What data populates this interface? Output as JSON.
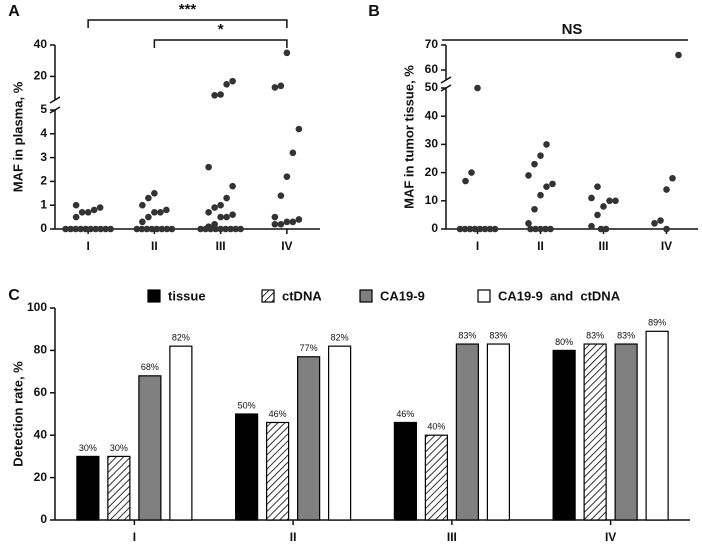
{
  "chart_data": [
    {
      "type": "strip",
      "panel": "A",
      "ylabel": "MAF in plasma, %",
      "categories": [
        "I",
        "II",
        "III",
        "IV"
      ],
      "values": [
        [
          0,
          0,
          0,
          0,
          0,
          0,
          0,
          0,
          0,
          0,
          0.5,
          0.7,
          0.7,
          0.8,
          0.9,
          1.0
        ],
        [
          0,
          0,
          0,
          0,
          0,
          0,
          0,
          0,
          0.3,
          0.5,
          0.7,
          0.7,
          0.8,
          1.0,
          1.3,
          1.5
        ],
        [
          0,
          0,
          0,
          0,
          0,
          0,
          0,
          0,
          0,
          0.1,
          0.2,
          0.5,
          0.5,
          0.6,
          0.7,
          0.9,
          1.0,
          1.3,
          1.8,
          2.6,
          8,
          8.5,
          15,
          17
        ],
        [
          0.2,
          0.2,
          0.3,
          0.3,
          0.4,
          0.5,
          1.4,
          2.2,
          3.2,
          4.2,
          13,
          14,
          35
        ]
      ],
      "color": "#333333",
      "ylim": [
        0,
        5
      ],
      "yticks": [
        0,
        1,
        2,
        3,
        4,
        5
      ],
      "ylim_upper": [
        5,
        40
      ],
      "yticks_upper": [
        20,
        40
      ],
      "brackets": [
        {
          "label": "***",
          "from": "I",
          "to": "IV"
        },
        {
          "label": "*",
          "from": "II",
          "to": "IV"
        }
      ]
    },
    {
      "type": "strip",
      "panel": "B",
      "ylabel": "MAF in tumor tissue, %",
      "categories": [
        "I",
        "II",
        "III",
        "IV"
      ],
      "values": [
        [
          0,
          0,
          0,
          0,
          0,
          0,
          0,
          0,
          17,
          20,
          50
        ],
        [
          0,
          0,
          0,
          0,
          0,
          2,
          7,
          12,
          15,
          16,
          19,
          23,
          26,
          30
        ],
        [
          0,
          0,
          1,
          5,
          8,
          10,
          10,
          11,
          15
        ],
        [
          0,
          2,
          3,
          14,
          18,
          66
        ]
      ],
      "color": "#333333",
      "ylim": [
        0,
        50
      ],
      "yticks": [
        0,
        10,
        20,
        30,
        40,
        50
      ],
      "ylim_upper": [
        56,
        70
      ],
      "yticks_upper": [
        60,
        70
      ],
      "brackets": [
        {
          "label": "NS",
          "from": "I",
          "to": "IV"
        }
      ]
    },
    {
      "type": "bar",
      "panel": "C",
      "ylabel": "Detection rate, %",
      "categories": [
        "I",
        "II",
        "III",
        "IV"
      ],
      "series": [
        {
          "name": "tissue",
          "color": "#000000",
          "values": [
            30,
            50,
            46,
            80
          ],
          "value_labels": [
            "30%",
            "50%",
            "46%",
            "80%"
          ]
        },
        {
          "name": "ctDNA",
          "color": "#ffffff",
          "hatch": true,
          "values": [
            30,
            46,
            40,
            83
          ],
          "value_labels": [
            "30%",
            "46%",
            "40%",
            "83%"
          ]
        },
        {
          "name": "CA19-9",
          "color": "#808080",
          "values": [
            68,
            77,
            83,
            83
          ],
          "value_labels": [
            "68%",
            "77%",
            "83%",
            "83%"
          ]
        },
        {
          "name": "CA19-9  and  ctDNA",
          "color": "#ffffff",
          "values": [
            82,
            82,
            83,
            89
          ],
          "value_labels": [
            "82%",
            "82%",
            "83%",
            "89%"
          ]
        }
      ],
      "ylim": [
        0,
        100
      ],
      "yticks": [
        0,
        20,
        40,
        60,
        80,
        100
      ]
    }
  ]
}
